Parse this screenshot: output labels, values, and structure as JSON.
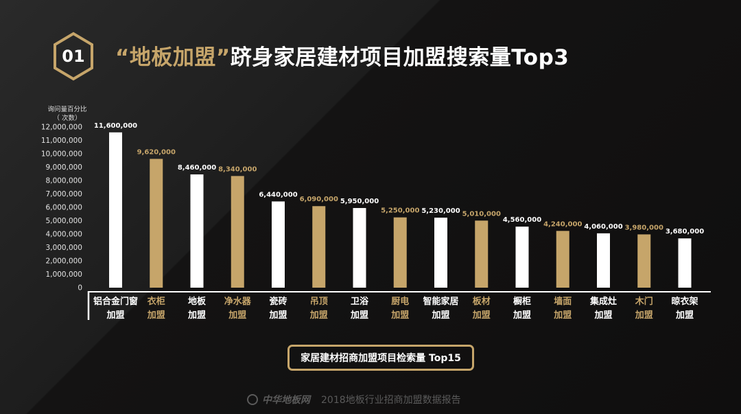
{
  "badge": {
    "number": "01"
  },
  "title": {
    "quoted": "“地板加盟”",
    "rest": "跻身家居建材项目加盟搜索量Top3"
  },
  "colors": {
    "gold": "#c6a56a",
    "white": "#ffffff",
    "axis": "#ffffff"
  },
  "chart_data": {
    "type": "bar",
    "ylabel_line1": "询问量百分比",
    "ylabel_line2": "（ 次数）",
    "ylim": [
      0,
      12000000
    ],
    "yticks": [
      "0",
      "1,000,000",
      "2,000,000",
      "3,000,000",
      "4,000,000",
      "5,000,000",
      "6,000,000",
      "7,000,000",
      "8,000,000",
      "9,000,000",
      "10,000,000",
      "11,000,000",
      "12,000,000"
    ],
    "categories": [
      [
        "铝合金门窗",
        "加盟"
      ],
      [
        "衣柜",
        "加盟"
      ],
      [
        "地板",
        "加盟"
      ],
      [
        "净水器",
        "加盟"
      ],
      [
        "瓷砖",
        "加盟"
      ],
      [
        "吊顶",
        "加盟"
      ],
      [
        "卫浴",
        "加盟"
      ],
      [
        "厨电",
        "加盟"
      ],
      [
        "智能家居",
        "加盟"
      ],
      [
        "板材",
        "加盟"
      ],
      [
        "橱柜",
        "加盟"
      ],
      [
        "墙面",
        "加盟"
      ],
      [
        "集成灶",
        "加盟"
      ],
      [
        "木门",
        "加盟"
      ],
      [
        "晾衣架",
        "加盟"
      ]
    ],
    "values": [
      11600000,
      9620000,
      8460000,
      8340000,
      6440000,
      6090000,
      5950000,
      5250000,
      5230000,
      5010000,
      4560000,
      4240000,
      4060000,
      3980000,
      3680000
    ],
    "value_labels": [
      "11,600,000",
      "9,620,000",
      "8,460,000",
      "8,340,000",
      "6,440,000",
      "6,090,000",
      "5,950,000",
      "5,250,000",
      "5,230,000",
      "5,010,000",
      "4,560,000",
      "4,240,000",
      "4,060,000",
      "3,980,000",
      "3,680,000"
    ],
    "bar_colors": [
      "white",
      "gold",
      "white",
      "gold",
      "white",
      "gold",
      "white",
      "gold",
      "white",
      "gold",
      "white",
      "gold",
      "white",
      "gold",
      "white"
    ]
  },
  "caption": "家居建材招商加盟项目检索量 Top15",
  "footer": {
    "logo": "中华地板网",
    "text": "2018地板行业招商加盟数据报告"
  }
}
